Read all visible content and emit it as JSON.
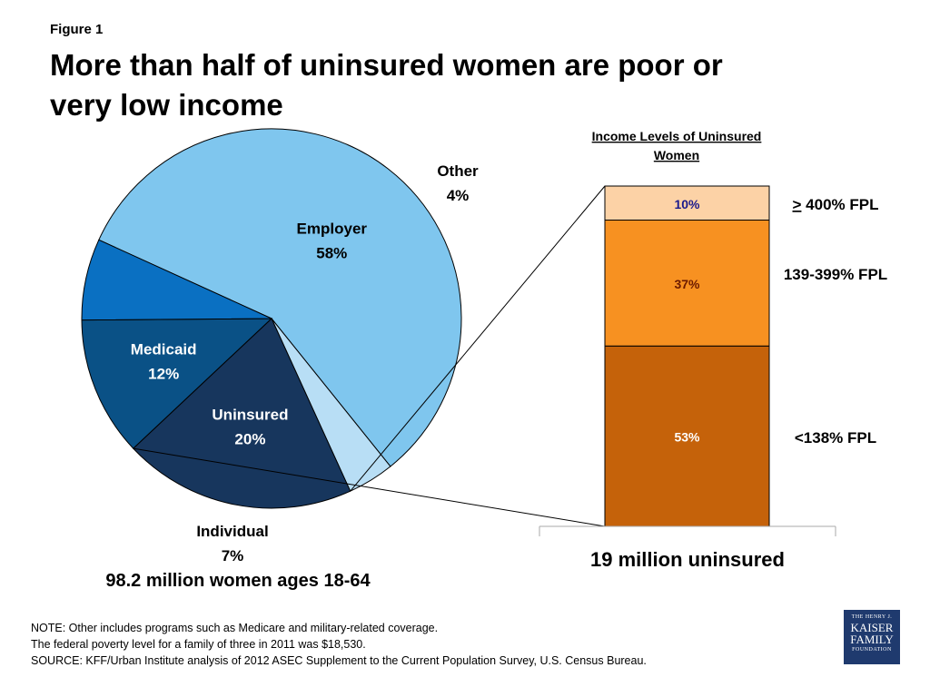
{
  "figure_label": "Figure 1",
  "title": "More than half of uninsured women are poor or very low income",
  "chart_data": [
    {
      "type": "pie",
      "slices": [
        {
          "label": "Employer",
          "value": 58,
          "display": "58%",
          "color": "#7fc6ee"
        },
        {
          "label": "Other",
          "value": 4,
          "display": "4%",
          "color": "#b8def5"
        },
        {
          "label": "Uninsured",
          "value": 20,
          "display": "20%",
          "color": "#17365d"
        },
        {
          "label": "Medicaid",
          "value": 12,
          "display": "12%",
          "color": "#0a5186"
        },
        {
          "label": "Individual",
          "value": 7,
          "display": "7%",
          "color": "#0a70c2"
        }
      ],
      "caption": "98.2 million women ages 18-64"
    },
    {
      "type": "bar",
      "stacked": true,
      "title": "Income Levels of Uninsured Women",
      "segments": [
        {
          "label": "<138% FPL",
          "value": 53,
          "display": "53%",
          "color": "#c5620a"
        },
        {
          "label": "139-399% FPL",
          "value": 37,
          "display": "37%",
          "color": "#f79121"
        },
        {
          "label": "> 400% FPL",
          "value": 10,
          "display": "10%",
          "color": "#fcd2a6"
        }
      ],
      "caption": "19 million uninsured"
    }
  ],
  "notes": [
    "NOTE: Other  includes programs such as Medicare and military-related coverage.",
    "The federal poverty level for a family of three in 2011 was $18,530.",
    "SOURCE: KFF/Urban Institute analysis of 2012 ASEC Supplement to the Current Population Survey, U.S. Census Bureau."
  ],
  "logo": {
    "line1": "THE HENRY J.",
    "line2": "KAISER",
    "line3": "FAMILY",
    "line4": "FOUNDATION"
  }
}
